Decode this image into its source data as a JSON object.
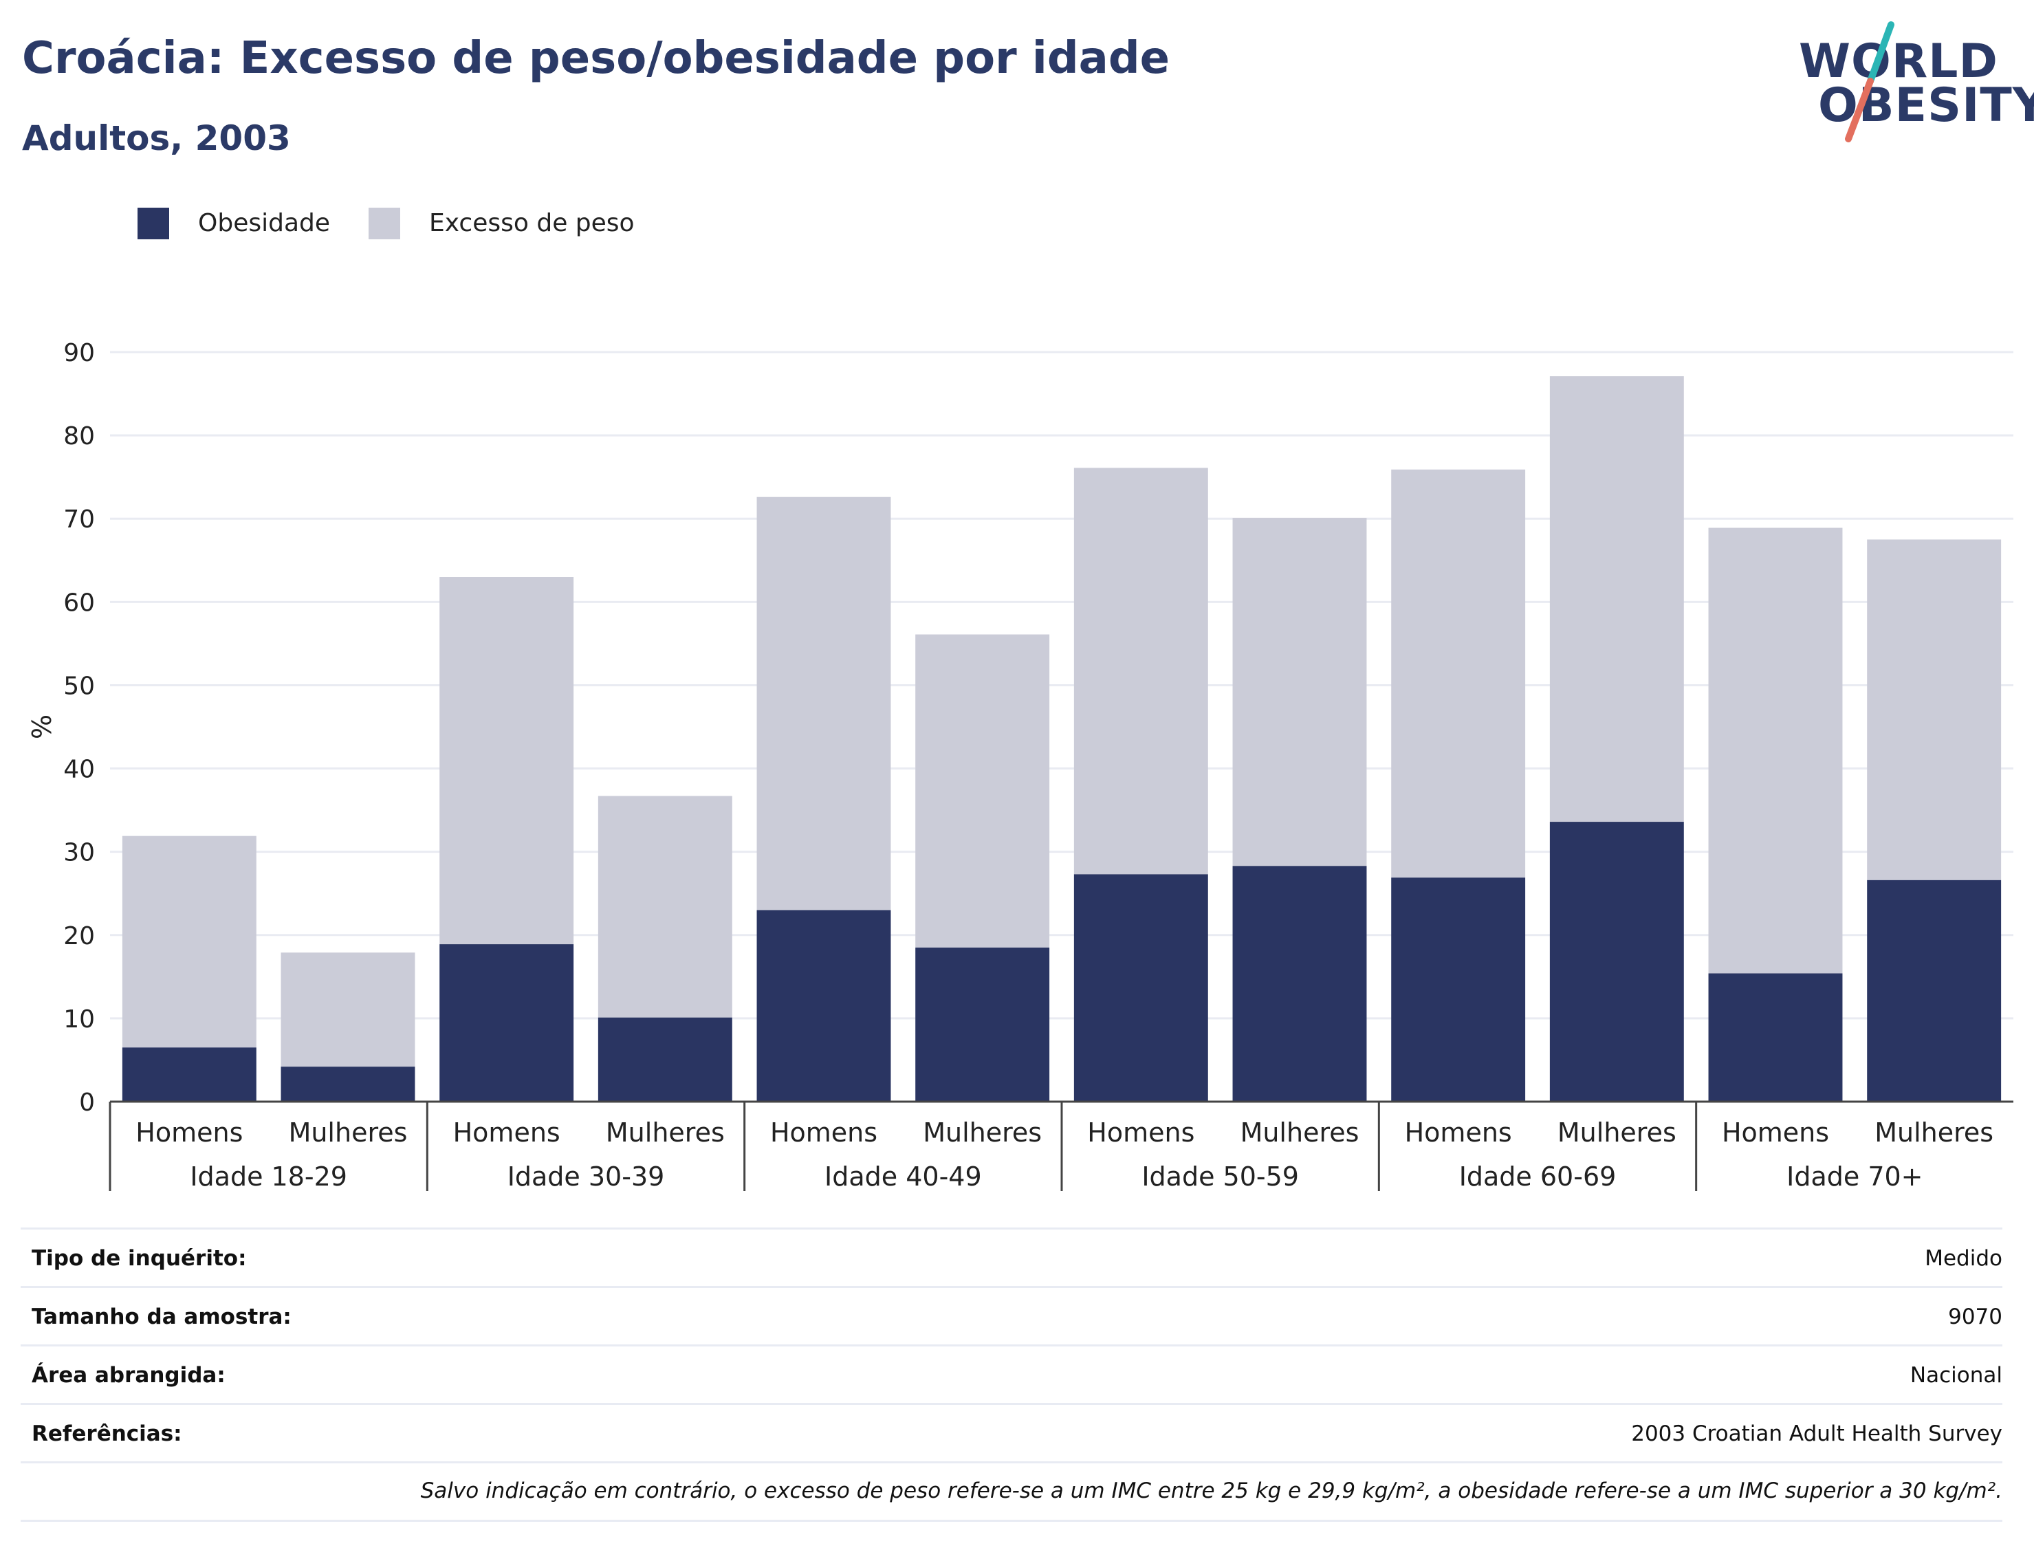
{
  "header": {
    "title": "Croácia: Excesso de peso/obesidade por idade",
    "subtitle": "Adultos, 2003"
  },
  "logo": {
    "line1": "WORLD",
    "line2": "OBESITY",
    "accent_colors": [
      "#2bb5b5",
      "#e36f5e"
    ]
  },
  "legend": {
    "items": [
      {
        "label": "Obesidade",
        "color": "#2a3562"
      },
      {
        "label": "Excesso de peso",
        "color": "#cbccd8"
      }
    ]
  },
  "chart_data": {
    "type": "bar",
    "stacked": true,
    "ylabel": "%",
    "ylim": [
      0,
      90
    ],
    "yticks": [
      0,
      10,
      20,
      30,
      40,
      50,
      60,
      70,
      80,
      90
    ],
    "grid": true,
    "legend_position": "top-left",
    "groups": [
      "Idade 18-29",
      "Idade 30-39",
      "Idade 40-49",
      "Idade 50-59",
      "Idade 60-69",
      "Idade 70+"
    ],
    "subcategories": [
      "Homens",
      "Mulheres"
    ],
    "series": [
      {
        "name": "Obesidade",
        "color": "#2a3562",
        "values": [
          6.5,
          4.2,
          18.9,
          10.1,
          23.0,
          18.5,
          27.3,
          28.3,
          26.9,
          33.6,
          15.4,
          26.6
        ]
      },
      {
        "name": "Excesso de peso",
        "color": "#cbccd8",
        "values": [
          25.4,
          13.7,
          44.1,
          26.6,
          49.6,
          37.6,
          48.8,
          41.8,
          49.0,
          53.5,
          53.5,
          40.9
        ]
      }
    ]
  },
  "info": {
    "rows": [
      {
        "label": "Tipo de inquérito:",
        "value": "Medido"
      },
      {
        "label": "Tamanho da amostra:",
        "value": "9070"
      },
      {
        "label": "Área abrangida:",
        "value": "Nacional"
      },
      {
        "label": "Referências:",
        "value": "2003 Croatian Adult Health Survey"
      }
    ],
    "footnote": "Salvo indicação em contrário, o excesso de peso refere-se a um IMC entre 25 kg e 29,9 kg/m², a obesidade refere-se a um IMC superior a 30 kg/m²."
  }
}
